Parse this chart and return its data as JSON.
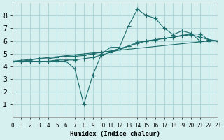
{
  "xlabel": "Humidex (Indice chaleur)",
  "ylabel": "",
  "bg_color": "#d6f0f0",
  "grid_color": "#b0d8d8",
  "line_color": "#1a6b6b",
  "xlim": [
    0,
    23
  ],
  "ylim": [
    0,
    9
  ],
  "xticks": [
    0,
    1,
    2,
    3,
    4,
    5,
    6,
    7,
    8,
    9,
    10,
    11,
    12,
    13,
    14,
    15,
    16,
    17,
    18,
    19,
    20,
    21,
    22,
    23
  ],
  "yticks": [
    1,
    2,
    3,
    4,
    5,
    6,
    7,
    8
  ],
  "lines": [
    {
      "x": [
        0,
        1,
        2,
        3,
        4,
        5,
        6,
        7,
        8,
        9,
        10,
        11,
        12,
        13,
        14,
        15,
        16,
        17,
        18,
        19,
        20,
        21,
        22,
        23
      ],
      "y": [
        4.4,
        4.4,
        4.4,
        4.4,
        4.4,
        4.4,
        4.4,
        3.8,
        1.0,
        3.3,
        5.0,
        5.5,
        5.5,
        7.2,
        8.5,
        8.0,
        7.8,
        7.0,
        6.5,
        6.8,
        6.6,
        6.0,
        6.0,
        6.0
      ],
      "has_markers": true
    },
    {
      "x": [
        0,
        1,
        2,
        3,
        4,
        5,
        6,
        7,
        8,
        9,
        10,
        11,
        12,
        13,
        14,
        15,
        16,
        17,
        18,
        19,
        20,
        21,
        22,
        23
      ],
      "y": [
        4.4,
        4.4,
        4.5,
        4.6,
        4.6,
        4.7,
        4.8,
        4.8,
        4.85,
        5.0,
        5.1,
        5.2,
        5.4,
        5.6,
        5.8,
        6.0,
        6.1,
        6.2,
        6.3,
        6.4,
        6.5,
        6.3,
        6.1,
        6.0
      ],
      "has_markers": true
    },
    {
      "x": [
        0,
        1,
        2,
        3,
        4,
        5,
        6,
        7,
        8,
        9,
        10,
        11,
        12,
        13,
        14,
        15,
        16,
        17,
        18,
        19,
        20,
        21,
        22,
        23
      ],
      "y": [
        4.4,
        4.4,
        4.4,
        4.4,
        4.4,
        4.5,
        4.5,
        4.5,
        4.6,
        4.7,
        4.9,
        5.1,
        5.3,
        5.6,
        5.9,
        6.0,
        6.1,
        6.2,
        6.3,
        6.45,
        6.55,
        6.55,
        6.1,
        6.0
      ],
      "has_markers": true
    },
    {
      "x": [
        0,
        22
      ],
      "y": [
        4.4,
        6.0
      ],
      "has_markers": false
    }
  ]
}
